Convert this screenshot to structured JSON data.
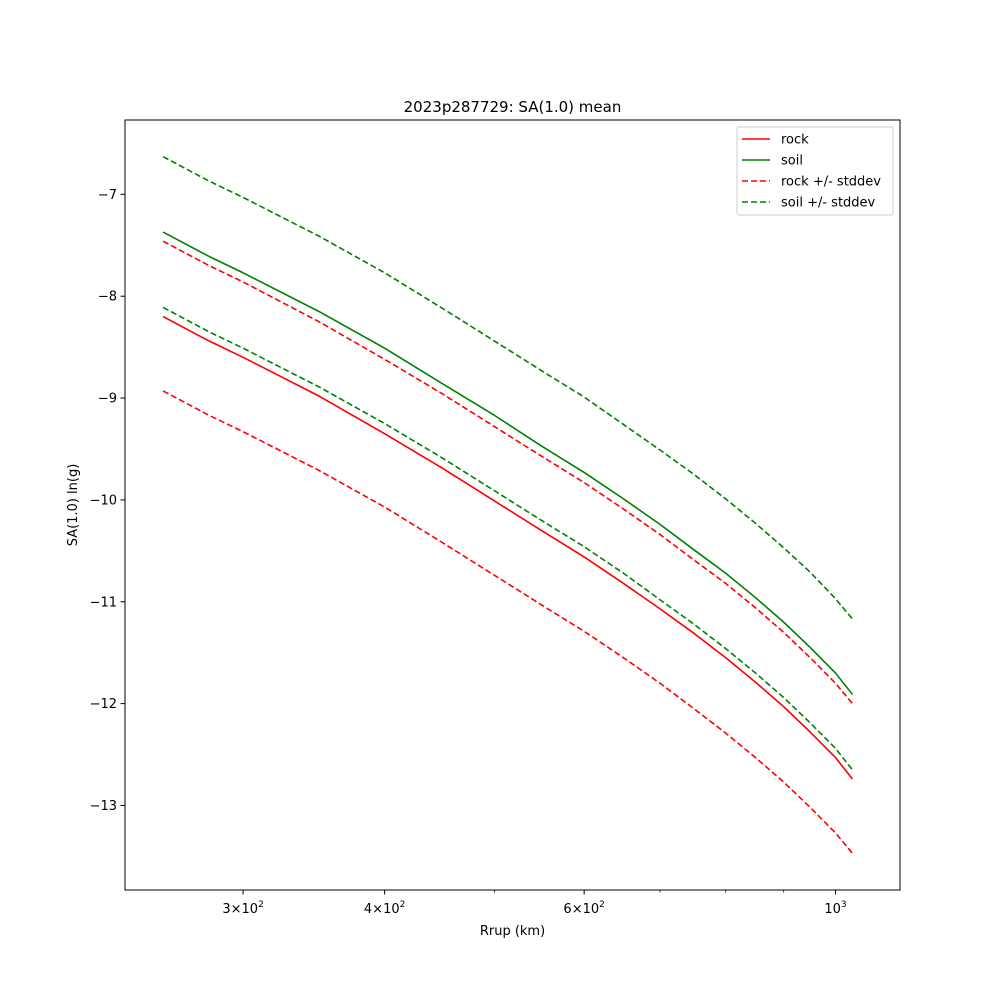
{
  "chart_data": {
    "type": "line",
    "title": "2023p287729: SA(1.0) mean",
    "xlabel": "Rrup (km)",
    "ylabel": "SA(1.0) ln(g)",
    "xscale": "log",
    "xlim": [
      236,
      1140
    ],
    "ylim": [
      -13.83,
      -6.27
    ],
    "grid": false,
    "legend_position": "top-right",
    "x_ticks": [
      {
        "value": 300,
        "base": "3",
        "exp": "2"
      },
      {
        "value": 400,
        "base": "4",
        "exp": "2"
      },
      {
        "value": 600,
        "base": "6",
        "exp": "2"
      },
      {
        "value": 1000,
        "base": "",
        "exp": "3"
      }
    ],
    "x_minor_ticks": [
      500,
      700,
      800,
      900
    ],
    "y_ticks": [
      {
        "value": -7,
        "label": "−7"
      },
      {
        "value": -8,
        "label": "−8"
      },
      {
        "value": -9,
        "label": "−9"
      },
      {
        "value": -10,
        "label": "−10"
      },
      {
        "value": -11,
        "label": "−11"
      },
      {
        "value": -12,
        "label": "−12"
      },
      {
        "value": -13,
        "label": "−13"
      }
    ],
    "x": [
      255,
      280,
      300,
      350,
      400,
      450,
      500,
      550,
      600,
      650,
      700,
      750,
      800,
      850,
      900,
      950,
      1000,
      1035
    ],
    "series": [
      {
        "name": "rock",
        "color": "#ff0000",
        "dash": false,
        "values": [
          -8.2,
          -8.44,
          -8.6,
          -8.98,
          -9.35,
          -9.69,
          -10.01,
          -10.3,
          -10.56,
          -10.82,
          -11.07,
          -11.31,
          -11.55,
          -11.79,
          -12.03,
          -12.28,
          -12.53,
          -12.74
        ]
      },
      {
        "name": "soil",
        "color": "#008000",
        "dash": false,
        "values": [
          -7.37,
          -7.61,
          -7.77,
          -8.15,
          -8.51,
          -8.86,
          -9.17,
          -9.47,
          -9.73,
          -9.99,
          -10.24,
          -10.49,
          -10.72,
          -10.96,
          -11.2,
          -11.45,
          -11.7,
          -11.91
        ]
      },
      {
        "name": "rock +/- stddev",
        "color": "#ff0000",
        "dash": true,
        "values": [
          -8.93,
          -9.17,
          -9.33,
          -9.71,
          -10.07,
          -10.42,
          -10.74,
          -11.03,
          -11.29,
          -11.55,
          -11.8,
          -12.05,
          -12.29,
          -12.53,
          -12.77,
          -13.02,
          -13.27,
          -13.47
        ]
      },
      {
        "name": "rock +/- stddev",
        "color": "#ff0000",
        "dash": true,
        "legend": false,
        "values": [
          -7.46,
          -7.7,
          -7.86,
          -8.25,
          -8.62,
          -8.96,
          -9.28,
          -9.57,
          -9.83,
          -10.09,
          -10.34,
          -10.59,
          -10.82,
          -11.06,
          -11.3,
          -11.55,
          -11.8,
          -12.0
        ]
      },
      {
        "name": "soil +/- stddev",
        "color": "#008000",
        "dash": true,
        "values": [
          -8.11,
          -8.35,
          -8.51,
          -8.89,
          -9.25,
          -9.59,
          -9.91,
          -10.2,
          -10.46,
          -10.72,
          -10.98,
          -11.22,
          -11.46,
          -11.7,
          -11.94,
          -12.19,
          -12.44,
          -12.65
        ]
      },
      {
        "name": "soil +/- stddev",
        "color": "#008000",
        "dash": true,
        "legend": false,
        "values": [
          -6.63,
          -6.87,
          -7.03,
          -7.41,
          -7.77,
          -8.12,
          -8.44,
          -8.73,
          -8.99,
          -9.26,
          -9.51,
          -9.75,
          -9.99,
          -10.23,
          -10.47,
          -10.71,
          -10.97,
          -11.17
        ]
      }
    ]
  }
}
